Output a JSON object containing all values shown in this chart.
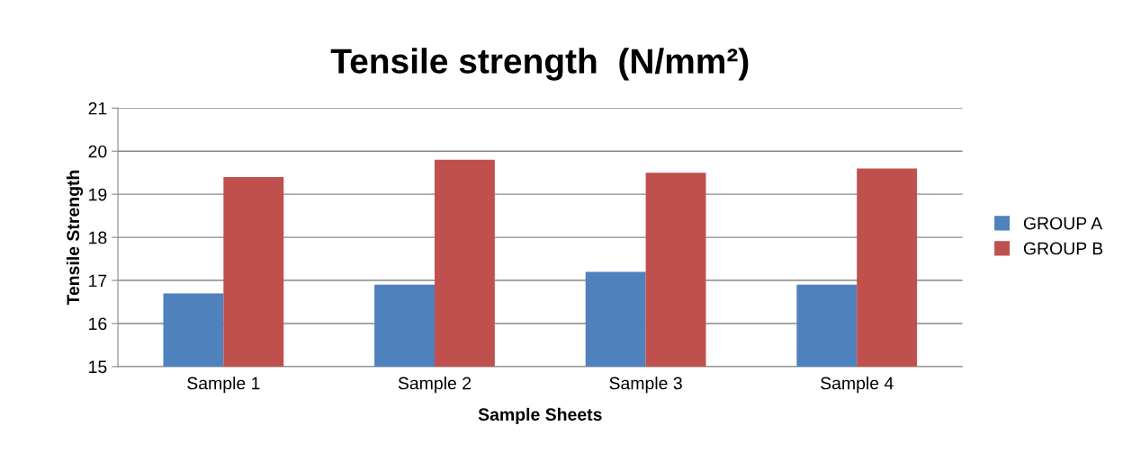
{
  "chart_data": {
    "type": "bar",
    "title": "Tensile strength  (N/mm²)",
    "xlabel": "Sample Sheets",
    "ylabel": "Tensile Strength",
    "categories": [
      "Sample 1",
      "Sample 2",
      "Sample 3",
      "Sample 4"
    ],
    "series": [
      {
        "name": "GROUP A",
        "color": "#4f81bd",
        "values": [
          16.7,
          16.9,
          17.2,
          16.9
        ]
      },
      {
        "name": "GROUP B",
        "color": "#c0504d",
        "values": [
          19.4,
          19.8,
          19.5,
          19.6
        ]
      }
    ],
    "ylim": [
      15,
      21
    ],
    "yticks": [
      15,
      16,
      17,
      18,
      19,
      20,
      21
    ],
    "grid": "y",
    "legend": "right"
  }
}
